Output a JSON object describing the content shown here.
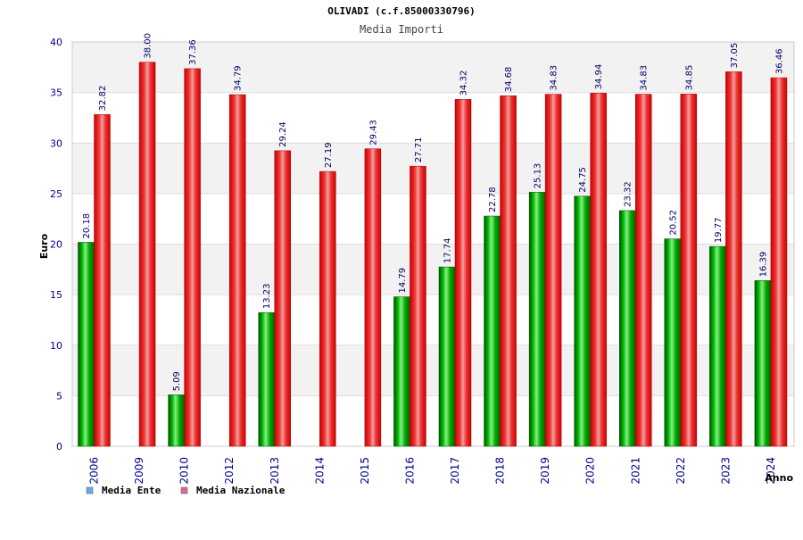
{
  "chart_data": {
    "type": "bar",
    "title": "OLIVADI (c.f.85000330796)",
    "subtitle": "Media Importi",
    "xlabel": "Anno",
    "ylabel": "Euro",
    "ylim": [
      0,
      40
    ],
    "yticks": [
      0,
      5,
      10,
      15,
      20,
      25,
      30,
      35,
      40
    ],
    "grid": true,
    "legend_position": "bottom-left",
    "categories": [
      "2006",
      "2009",
      "2010",
      "2012",
      "2013",
      "2014",
      "2015",
      "2016",
      "2017",
      "2018",
      "2019",
      "2020",
      "2021",
      "2022",
      "2023",
      "2024"
    ],
    "series": [
      {
        "name": "Media Ente",
        "color": "#00aa00",
        "legend_color": "#66aaee",
        "values": [
          20.18,
          null,
          5.09,
          null,
          13.23,
          null,
          null,
          14.79,
          17.74,
          22.78,
          25.13,
          24.75,
          23.32,
          20.52,
          19.77,
          16.39
        ],
        "labels": [
          "20.18",
          "",
          "5.09",
          "",
          "13.23",
          "",
          "",
          "14.79",
          "17.74",
          "22.78",
          "25.13",
          "24.75",
          "23.32",
          "20.52",
          "19.77",
          "16.39"
        ]
      },
      {
        "name": "Media Nazionale",
        "color": "#ee1111",
        "legend_color": "#dd6699",
        "values": [
          32.82,
          38.0,
          37.36,
          34.79,
          29.24,
          27.19,
          29.43,
          27.71,
          34.32,
          34.68,
          34.83,
          34.94,
          34.83,
          34.85,
          37.05,
          36.46
        ],
        "labels": [
          "32.82",
          "38.00",
          "37.36",
          "34.79",
          "29.24",
          "27.19",
          "29.43",
          "27.71",
          "34.32",
          "34.68",
          "34.83",
          "34.94",
          "34.83",
          "34.85",
          "37.05",
          "36.46"
        ]
      }
    ]
  }
}
